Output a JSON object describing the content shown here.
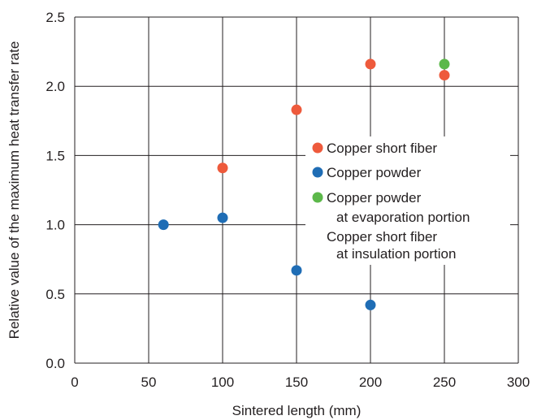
{
  "chart_data": {
    "type": "scatter",
    "title": "",
    "xlabel": "Sintered length (mm)",
    "ylabel": "Relative value of the maximum heat transfer rate",
    "xlim": [
      0,
      300
    ],
    "ylim": [
      0,
      2.5
    ],
    "x_ticks": [
      "0",
      "50",
      "100",
      "150",
      "200",
      "250",
      "300"
    ],
    "y_ticks": [
      "0.0",
      "0.5",
      "1.0",
      "1.5",
      "2.0",
      "2.5"
    ],
    "grid": true,
    "legend_position": "center-right",
    "series": [
      {
        "name": "Copper short fiber",
        "color": "#ee5a3c",
        "points": [
          {
            "x": 100,
            "y": 1.41
          },
          {
            "x": 150,
            "y": 1.83
          },
          {
            "x": 200,
            "y": 2.16
          },
          {
            "x": 250,
            "y": 2.08
          }
        ]
      },
      {
        "name": "Copper powder",
        "color": "#1f6db5",
        "points": [
          {
            "x": 60,
            "y": 1.0
          },
          {
            "x": 100,
            "y": 1.05
          },
          {
            "x": 150,
            "y": 0.67
          },
          {
            "x": 200,
            "y": 0.42
          }
        ]
      },
      {
        "name": "Copper powder",
        "name_line2": "at evaporation portion",
        "name_line3": "Copper short fiber",
        "name_line4": "at insulation portion",
        "color": "#5cb84a",
        "points": [
          {
            "x": 250,
            "y": 2.16
          }
        ]
      }
    ]
  }
}
